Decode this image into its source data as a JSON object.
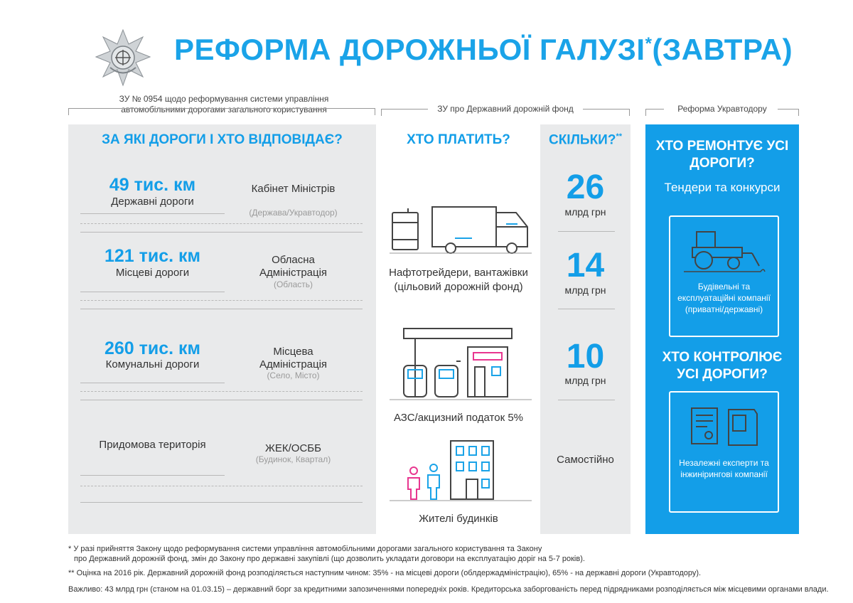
{
  "header": {
    "title": "РЕФОРМА ДОРОЖНЬОЇ ГАЛУЗІ",
    "title_star": "*",
    "title_tail": "(ЗАВТРА)"
  },
  "sections": {
    "law_roads": "ЗУ № 0954  щодо реформування системи управління автомобільними дорогами загального користування",
    "law_fund": "ЗУ про Державний дорожній фонд",
    "reform": "Реформа Укравтодору"
  },
  "roads_panel": {
    "heading": "ЗА ЯКІ ДОРОГИ І ХТО ВІДПОВІДАЄ?",
    "rows": [
      {
        "km": "49 тис. км",
        "road": "Державні дороги",
        "resp": "Кабінет Міністрів",
        "resp_sub": "(Держава/Укравтодор)"
      },
      {
        "km": "121 тис. км",
        "road": "Місцеві дороги",
        "resp": "Обласна Адміністрація",
        "resp_sub": "(Область)"
      },
      {
        "km": "260 тис. км",
        "road": "Комунальні дороги",
        "resp": "Місцева Адміністрація",
        "resp_sub": "(Село, Місто)"
      },
      {
        "km": "",
        "road": "Придомова територія",
        "resp": "ЖЕК/ОСББ",
        "resp_sub": "(Будинок, Квартал)"
      }
    ]
  },
  "payers": {
    "heading": "ХТО ПЛАТИТЬ?",
    "items": [
      {
        "label": "Нафтотрейдери, вантажівки (цільовий дорожній фонд)",
        "icon": "truck-barrel-icon"
      },
      {
        "label": "АЗС/акцизний податок 5%",
        "icon": "gas-station-icon"
      },
      {
        "label": "Жителі будинків",
        "icon": "residents-house-icon"
      }
    ]
  },
  "amounts": {
    "heading": "СКІЛЬКИ?",
    "heading_star": "**",
    "items": [
      {
        "value": "26",
        "unit": "млрд грн"
      },
      {
        "value": "14",
        "unit": "млрд грн"
      },
      {
        "value": "10",
        "unit": "млрд грн"
      },
      {
        "value": "Самостійно",
        "unit": ""
      }
    ]
  },
  "reform_panel": {
    "repair_heading": "ХТО РЕМОНТУЄ УСІ ДОРОГИ?",
    "repair_sub": "Тендери та конкурси",
    "repair_card": "Будівельні та експлуатаційні компанії (приватні/державні)",
    "control_heading": "ХТО КОНТРОЛЮЄ УСІ ДОРОГИ?",
    "control_card": "Незалежні експерти та інжинірингові компанії"
  },
  "footnotes": {
    "f1_line1": "* У разі прийняття Закону щодо реформування системи управління автомобільними дорогами загального користування та Закону",
    "f1_line2": "про Державний дорожній фонд, змін до Закону про державні закупівлі (що дозволить укладати договори на експлуатацію доріг на 5-7 років).",
    "f2": "** Оцінка на 2016 рік. Державний дорожній фонд розподіляється наступним чином: 35% - на місцеві дороги (облдержадміністрацію), 65% - на державні дороги (Укравтодору).",
    "f3": "Важливо: 43 млрд грн (станом на 01.03.15) – державний борг за кредитними запозиченнями попередніх років. Кредиторська заборгованість перед підрядниками розподіляється між місцевими органами влади."
  },
  "colors": {
    "accent": "#139ee8",
    "panel": "#e9eaeb",
    "pink": "#e8368f"
  }
}
